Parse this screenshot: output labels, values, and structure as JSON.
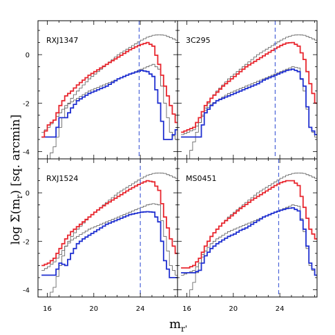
{
  "figure": {
    "ylabel_prefix": "log Σ(m",
    "ylabel_sub": "r",
    "ylabel_suffix": ") [sq. arcmin]",
    "xlabel_main": "m",
    "xlabel_sub": "r'"
  },
  "colors": {
    "red": "#e8262e",
    "blue": "#1f2fd0",
    "gray": "#555555",
    "dashed": "#4a63d8"
  },
  "chart_data": [
    {
      "type": "line",
      "panel": "RXJ1347",
      "label": "RXJ1347",
      "xlim": [
        15.2,
        27.2
      ],
      "ylim": [
        -4.3,
        1.4
      ],
      "xticks": [
        16,
        20,
        24
      ],
      "yticks": [
        -4,
        -2,
        0
      ],
      "dashed_x": 23.9,
      "series": [
        {
          "color": "red",
          "x": [
            15.5,
            16.0,
            16.5,
            17.0,
            17.5,
            18.0,
            18.5,
            19.0,
            19.5,
            20.0,
            20.5,
            21.0,
            21.5,
            22.0,
            22.5,
            23.0,
            23.5,
            24.0,
            24.5,
            25.0,
            25.5,
            26.0,
            26.5,
            27.0
          ],
          "y": [
            -3.4,
            -2.9,
            -2.7,
            -2.1,
            -1.7,
            -1.5,
            -1.25,
            -1.05,
            -0.85,
            -0.7,
            -0.55,
            -0.4,
            -0.25,
            -0.1,
            0.05,
            0.2,
            0.32,
            0.42,
            0.5,
            0.35,
            -0.4,
            -1.3,
            -2.1,
            -2.8
          ]
        },
        {
          "color": "blue",
          "x": [
            15.5,
            16.0,
            16.5,
            17.0,
            17.5,
            18.0,
            18.5,
            19.0,
            19.5,
            20.0,
            20.5,
            21.0,
            21.5,
            22.0,
            22.5,
            23.0,
            23.5,
            24.0,
            24.5,
            25.0,
            25.5,
            26.0,
            26.5,
            27.0
          ],
          "y": [
            -3.4,
            -3.4,
            -3.4,
            -2.6,
            -2.6,
            -2.2,
            -1.9,
            -1.75,
            -1.6,
            -1.5,
            -1.4,
            -1.3,
            -1.15,
            -1.0,
            -0.9,
            -0.8,
            -0.72,
            -0.65,
            -0.7,
            -0.9,
            -2.0,
            -3.5,
            -3.5,
            -3.1
          ]
        },
        {
          "color": "gray",
          "x": [
            15.5,
            16.0,
            16.5,
            17.0,
            17.5,
            18.0,
            18.5,
            19.0,
            19.5,
            20.0,
            20.5,
            21.0,
            21.5,
            22.0,
            22.5,
            23.0,
            23.5,
            24.0,
            24.5,
            25.0,
            25.5,
            26.0,
            26.5,
            27.0
          ],
          "y": [
            -3.2,
            -3.0,
            -2.7,
            -2.4,
            -2.1,
            -1.95,
            -1.8,
            -1.65,
            -1.5,
            -1.4,
            -1.3,
            -1.2,
            -1.1,
            -1.0,
            -0.9,
            -0.8,
            -0.7,
            -0.6,
            -0.5,
            -0.4,
            -0.6,
            -2.0,
            -3.2,
            -3.5
          ]
        },
        {
          "color": "gray",
          "x": [
            15.5,
            16.0,
            16.5,
            17.0,
            17.5,
            18.0,
            18.5,
            19.0,
            19.5,
            20.0,
            20.5,
            21.0,
            21.5,
            22.0,
            22.5,
            23.0,
            23.5,
            24.0,
            24.5,
            25.0,
            25.5,
            26.0,
            26.5,
            27.0
          ],
          "y": [
            -4.3,
            -4.3,
            -3.8,
            -3.0,
            -2.2,
            -1.8,
            -1.5,
            -1.25,
            -1.0,
            -0.8,
            -0.6,
            -0.4,
            -0.2,
            0.0,
            0.15,
            0.3,
            0.45,
            0.6,
            0.72,
            0.8,
            0.82,
            0.8,
            0.7,
            0.6
          ]
        }
      ]
    },
    {
      "type": "line",
      "panel": "3C295",
      "label": "3C295",
      "xlim": [
        15.2,
        27.2
      ],
      "ylim": [
        -4.3,
        1.4
      ],
      "xticks": [
        16,
        20,
        24
      ],
      "yticks": [
        -4,
        -2,
        0
      ],
      "dashed_x": 23.6,
      "series": [
        {
          "color": "red",
          "x": [
            15.5,
            16.0,
            16.5,
            17.0,
            17.5,
            18.0,
            18.5,
            19.0,
            19.5,
            20.0,
            20.5,
            21.0,
            21.5,
            22.0,
            22.5,
            23.0,
            23.5,
            24.0,
            24.5,
            25.0,
            25.5,
            26.0,
            26.5,
            27.0
          ],
          "y": [
            -3.2,
            -3.1,
            -3.0,
            -2.6,
            -2.1,
            -1.8,
            -1.55,
            -1.3,
            -1.1,
            -0.9,
            -0.7,
            -0.5,
            -0.35,
            -0.2,
            -0.05,
            0.1,
            0.25,
            0.38,
            0.48,
            0.5,
            0.35,
            -0.2,
            -1.2,
            -2.0
          ]
        },
        {
          "color": "blue",
          "x": [
            15.5,
            16.0,
            16.5,
            17.0,
            17.5,
            18.0,
            18.5,
            19.0,
            19.5,
            20.0,
            20.5,
            21.0,
            21.5,
            22.0,
            22.5,
            23.0,
            23.5,
            24.0,
            24.5,
            25.0,
            25.5,
            26.0,
            26.5,
            27.0
          ],
          "y": [
            -3.4,
            -3.4,
            -3.4,
            -3.4,
            -2.4,
            -2.1,
            -1.9,
            -1.8,
            -1.7,
            -1.6,
            -1.5,
            -1.4,
            -1.3,
            -1.2,
            -1.05,
            -0.95,
            -0.85,
            -0.75,
            -0.65,
            -0.6,
            -0.7,
            -1.3,
            -3.0,
            -3.3
          ]
        },
        {
          "color": "gray",
          "x": [
            15.5,
            16.0,
            16.5,
            17.0,
            17.5,
            18.0,
            18.5,
            19.0,
            19.5,
            20.0,
            20.5,
            21.0,
            21.5,
            22.0,
            22.5,
            23.0,
            23.5,
            24.0,
            24.5,
            25.0,
            25.5,
            26.0,
            26.5,
            27.0
          ],
          "y": [
            -3.3,
            -3.2,
            -3.1,
            -2.8,
            -2.3,
            -2.05,
            -1.9,
            -1.75,
            -1.6,
            -1.5,
            -1.4,
            -1.3,
            -1.2,
            -1.1,
            -1.0,
            -0.9,
            -0.8,
            -0.7,
            -0.6,
            -0.5,
            -0.55,
            -1.5,
            -3.0,
            -3.4
          ]
        },
        {
          "color": "gray",
          "x": [
            15.5,
            16.0,
            16.5,
            17.0,
            17.5,
            18.0,
            18.5,
            19.0,
            19.5,
            20.0,
            20.5,
            21.0,
            21.5,
            22.0,
            22.5,
            23.0,
            23.5,
            24.0,
            24.5,
            25.0,
            25.5,
            26.0,
            26.5,
            27.0
          ],
          "y": [
            -4.3,
            -4.3,
            -3.6,
            -2.8,
            -2.2,
            -1.8,
            -1.5,
            -1.25,
            -1.0,
            -0.8,
            -0.6,
            -0.4,
            -0.2,
            0.0,
            0.15,
            0.3,
            0.45,
            0.6,
            0.72,
            0.8,
            0.82,
            0.8,
            0.7,
            0.6
          ]
        }
      ]
    },
    {
      "type": "line",
      "panel": "RXJ1524",
      "label": "RXJ1524",
      "xlim": [
        15.2,
        27.2
      ],
      "ylim": [
        -4.3,
        1.4
      ],
      "xticks": [
        16,
        20,
        24
      ],
      "yticks": [
        -4,
        -2,
        0
      ],
      "dashed_x": 24.0,
      "series": [
        {
          "color": "red",
          "x": [
            15.5,
            16.0,
            16.5,
            17.0,
            17.5,
            18.0,
            18.5,
            19.0,
            19.5,
            20.0,
            20.5,
            21.0,
            21.5,
            22.0,
            22.5,
            23.0,
            23.5,
            24.0,
            24.5,
            25.0,
            25.5,
            26.0,
            26.5,
            27.0
          ],
          "y": [
            -3.0,
            -2.9,
            -2.7,
            -2.3,
            -1.9,
            -1.6,
            -1.4,
            -1.2,
            -1.0,
            -0.8,
            -0.62,
            -0.45,
            -0.3,
            -0.15,
            0.0,
            0.15,
            0.28,
            0.4,
            0.5,
            0.45,
            0.1,
            -1.0,
            -1.9,
            -2.5
          ]
        },
        {
          "color": "blue",
          "x": [
            15.5,
            16.0,
            16.5,
            17.0,
            17.5,
            18.0,
            18.5,
            19.0,
            19.5,
            20.0,
            20.5,
            21.0,
            21.5,
            22.0,
            22.5,
            23.0,
            23.5,
            24.0,
            24.5,
            25.0,
            25.5,
            26.0,
            26.5,
            27.0
          ],
          "y": [
            -3.4,
            -3.4,
            -3.4,
            -2.9,
            -3.0,
            -2.5,
            -2.1,
            -1.9,
            -1.75,
            -1.6,
            -1.45,
            -1.3,
            -1.2,
            -1.1,
            -1.0,
            -0.9,
            -0.85,
            -0.8,
            -0.78,
            -0.8,
            -1.2,
            -2.8,
            -3.5,
            -3.5
          ]
        },
        {
          "color": "gray",
          "x": [
            15.5,
            16.0,
            16.5,
            17.0,
            17.5,
            18.0,
            18.5,
            19.0,
            19.5,
            20.0,
            20.5,
            21.0,
            21.5,
            22.0,
            22.5,
            23.0,
            23.5,
            24.0,
            24.5,
            25.0,
            25.5,
            26.0,
            26.5,
            27.0
          ],
          "y": [
            -3.2,
            -3.05,
            -2.85,
            -2.55,
            -2.2,
            -1.95,
            -1.8,
            -1.65,
            -1.5,
            -1.4,
            -1.3,
            -1.2,
            -1.1,
            -1.0,
            -0.9,
            -0.8,
            -0.7,
            -0.6,
            -0.5,
            -0.45,
            -0.5,
            -1.8,
            -3.0,
            -3.4
          ]
        },
        {
          "color": "gray",
          "x": [
            15.5,
            16.0,
            16.5,
            17.0,
            17.5,
            18.0,
            18.5,
            19.0,
            19.5,
            20.0,
            20.5,
            21.0,
            21.5,
            22.0,
            22.5,
            23.0,
            23.5,
            24.0,
            24.5,
            25.0,
            25.5,
            26.0,
            26.5,
            27.0
          ],
          "y": [
            -4.3,
            -4.3,
            -3.9,
            -3.0,
            -2.2,
            -1.8,
            -1.5,
            -1.25,
            -1.0,
            -0.8,
            -0.6,
            -0.4,
            -0.2,
            0.0,
            0.15,
            0.3,
            0.45,
            0.6,
            0.72,
            0.8,
            0.82,
            0.8,
            0.7,
            0.6
          ]
        }
      ]
    },
    {
      "type": "line",
      "panel": "MS0451",
      "label": "MS0451",
      "xlim": [
        15.2,
        27.2
      ],
      "ylim": [
        -4.3,
        1.4
      ],
      "xticks": [
        16,
        20,
        24
      ],
      "yticks": [
        -4,
        -2,
        0
      ],
      "dashed_x": 23.9,
      "series": [
        {
          "color": "red",
          "x": [
            15.5,
            16.0,
            16.5,
            17.0,
            17.5,
            18.0,
            18.5,
            19.0,
            19.5,
            20.0,
            20.5,
            21.0,
            21.5,
            22.0,
            22.5,
            23.0,
            23.5,
            24.0,
            24.5,
            25.0,
            25.5,
            26.0,
            26.5,
            27.0
          ],
          "y": [
            -3.1,
            -3.1,
            -3.0,
            -2.7,
            -2.2,
            -1.8,
            -1.5,
            -1.25,
            -1.05,
            -0.85,
            -0.65,
            -0.48,
            -0.3,
            -0.15,
            0.0,
            0.15,
            0.3,
            0.42,
            0.5,
            0.5,
            0.3,
            -0.6,
            -1.5,
            -1.9
          ]
        },
        {
          "color": "blue",
          "x": [
            15.5,
            16.0,
            16.5,
            17.0,
            17.5,
            18.0,
            18.5,
            19.0,
            19.5,
            20.0,
            20.5,
            21.0,
            21.5,
            22.0,
            22.5,
            23.0,
            23.5,
            24.0,
            24.5,
            25.0,
            25.5,
            26.0,
            26.5,
            27.0
          ],
          "y": [
            -3.3,
            -3.3,
            -3.3,
            -3.2,
            -2.6,
            -2.3,
            -2.1,
            -1.95,
            -1.8,
            -1.7,
            -1.55,
            -1.45,
            -1.3,
            -1.15,
            -1.0,
            -0.9,
            -0.8,
            -0.72,
            -0.65,
            -0.62,
            -0.75,
            -1.5,
            -2.9,
            -3.4
          ]
        },
        {
          "color": "gray",
          "x": [
            15.5,
            16.0,
            16.5,
            17.0,
            17.5,
            18.0,
            18.5,
            19.0,
            19.5,
            20.0,
            20.5,
            21.0,
            21.5,
            22.0,
            22.5,
            23.0,
            23.5,
            24.0,
            24.5,
            25.0,
            25.5,
            26.0,
            26.5,
            27.0
          ],
          "y": [
            -3.4,
            -3.3,
            -3.2,
            -2.9,
            -2.4,
            -2.1,
            -1.9,
            -1.75,
            -1.6,
            -1.5,
            -1.4,
            -1.3,
            -1.2,
            -1.1,
            -1.0,
            -0.9,
            -0.8,
            -0.7,
            -0.6,
            -0.5,
            -0.55,
            -1.6,
            -3.0,
            -3.4
          ]
        },
        {
          "color": "gray",
          "x": [
            15.5,
            16.0,
            16.5,
            17.0,
            17.5,
            18.0,
            18.5,
            19.0,
            19.5,
            20.0,
            20.5,
            21.0,
            21.5,
            22.0,
            22.5,
            23.0,
            23.5,
            24.0,
            24.5,
            25.0,
            25.5,
            26.0,
            26.5,
            27.0
          ],
          "y": [
            -4.3,
            -4.3,
            -3.7,
            -2.9,
            -2.2,
            -1.8,
            -1.5,
            -1.25,
            -1.0,
            -0.8,
            -0.6,
            -0.4,
            -0.2,
            0.0,
            0.15,
            0.3,
            0.45,
            0.6,
            0.72,
            0.8,
            0.82,
            0.8,
            0.7,
            0.6
          ]
        }
      ]
    }
  ]
}
